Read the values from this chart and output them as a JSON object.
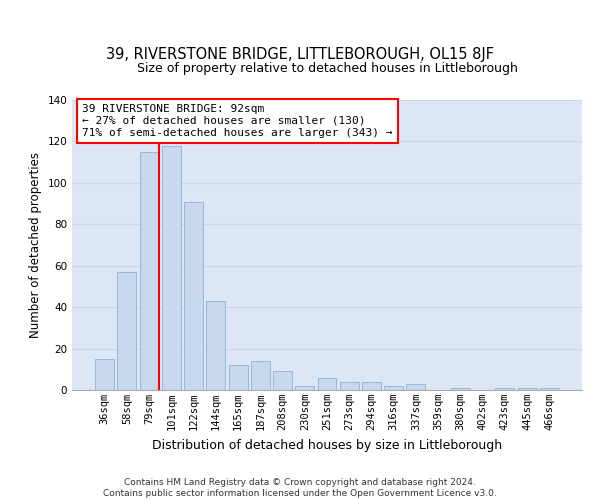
{
  "title": "39, RIVERSTONE BRIDGE, LITTLEBOROUGH, OL15 8JF",
  "subtitle": "Size of property relative to detached houses in Littleborough",
  "xlabel": "Distribution of detached houses by size in Littleborough",
  "ylabel": "Number of detached properties",
  "categories": [
    "36sqm",
    "58sqm",
    "79sqm",
    "101sqm",
    "122sqm",
    "144sqm",
    "165sqm",
    "187sqm",
    "208sqm",
    "230sqm",
    "251sqm",
    "273sqm",
    "294sqm",
    "316sqm",
    "337sqm",
    "359sqm",
    "380sqm",
    "402sqm",
    "423sqm",
    "445sqm",
    "466sqm"
  ],
  "values": [
    15,
    57,
    115,
    118,
    91,
    43,
    12,
    14,
    9,
    2,
    6,
    4,
    4,
    2,
    3,
    0,
    1,
    0,
    1,
    1,
    1
  ],
  "bar_color": "#c8d8ee",
  "bar_edge_color": "#8ab4d8",
  "grid_color": "#ccd6e8",
  "background_color": "#dde6f4",
  "annotation_box_text": "39 RIVERSTONE BRIDGE: 92sqm\n← 27% of detached houses are smaller (130)\n71% of semi-detached houses are larger (343) →",
  "red_line_bar_index": 2,
  "ylim": [
    0,
    140
  ],
  "yticks": [
    0,
    20,
    40,
    60,
    80,
    100,
    120,
    140
  ],
  "footer": "Contains HM Land Registry data © Crown copyright and database right 2024.\nContains public sector information licensed under the Open Government Licence v3.0.",
  "title_fontsize": 10.5,
  "subtitle_fontsize": 9,
  "xlabel_fontsize": 9,
  "ylabel_fontsize": 8.5,
  "tick_fontsize": 7.5
}
